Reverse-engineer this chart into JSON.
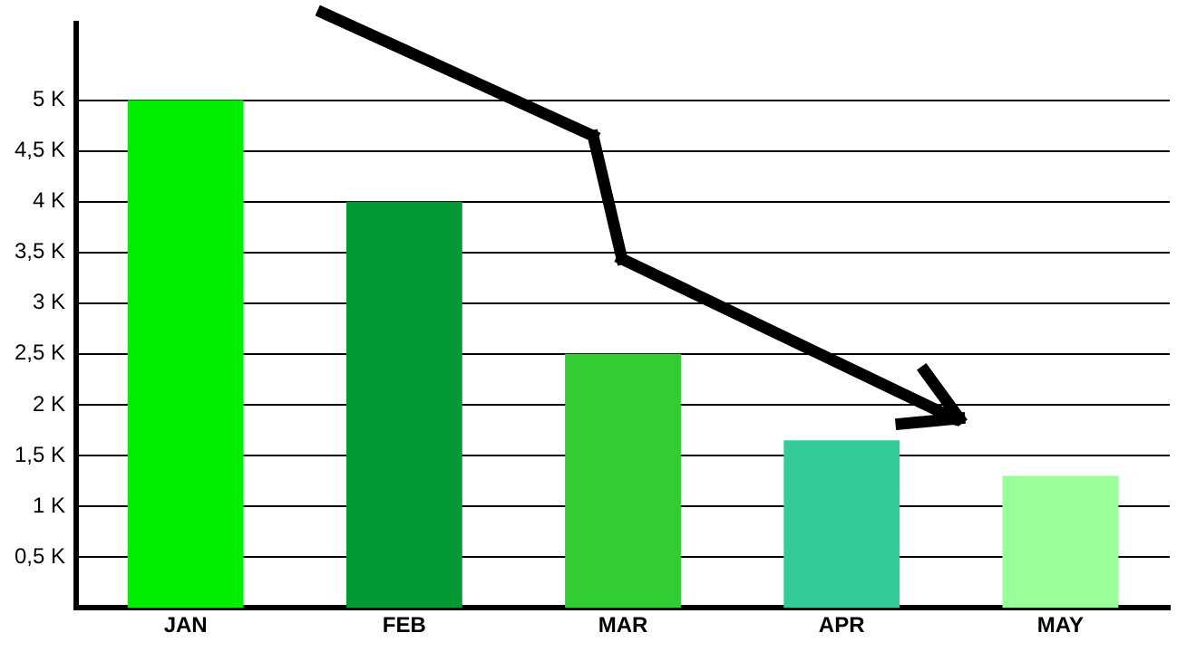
{
  "chart_data": {
    "type": "bar",
    "categories": [
      "JAN",
      "FEB",
      "MAR",
      "APR",
      "MAY"
    ],
    "values": [
      5000,
      4000,
      2500,
      1650,
      1300
    ],
    "colors": [
      "#00ee00",
      "#009933",
      "#33cc33",
      "#33cc99",
      "#99ff99"
    ],
    "ylim": [
      0,
      5750
    ],
    "yticks": [
      {
        "value": 500,
        "label": "0,5 K"
      },
      {
        "value": 1000,
        "label": "1 K"
      },
      {
        "value": 1500,
        "label": "1,5 K"
      },
      {
        "value": 2000,
        "label": "2 K"
      },
      {
        "value": 2500,
        "label": "2,5 K"
      },
      {
        "value": 3000,
        "label": "3 K"
      },
      {
        "value": 3500,
        "label": "3,5 K"
      },
      {
        "value": 4000,
        "label": "4 K"
      },
      {
        "value": 4500,
        "label": "4,5 K"
      },
      {
        "value": 5000,
        "label": "5 K"
      }
    ],
    "grid": "y"
  }
}
